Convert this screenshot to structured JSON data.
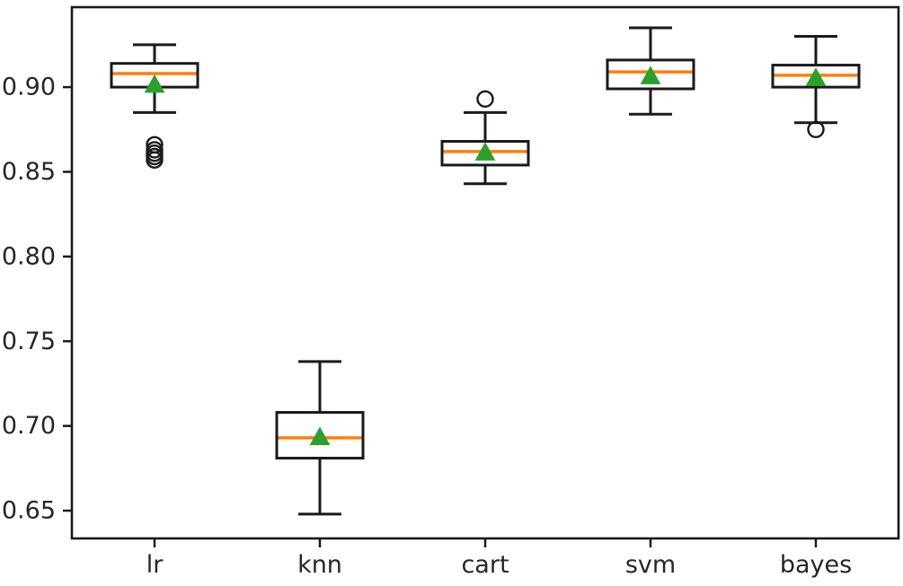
{
  "figure": {
    "title": "",
    "description": "Algorithm comparison boxplot of cross-validation accuracy scores"
  },
  "chart_data": {
    "type": "boxplot",
    "title": "",
    "xlabel": "",
    "ylabel": "",
    "categories": [
      "lr",
      "knn",
      "cart",
      "svm",
      "bayes"
    ],
    "series": [
      {
        "name": "lr",
        "whisker_low": 0.885,
        "q1": 0.9,
        "median": 0.908,
        "q3": 0.914,
        "whisker_high": 0.925,
        "mean": 0.902,
        "outliers": [
          0.857,
          0.859,
          0.861,
          0.863,
          0.866
        ]
      },
      {
        "name": "knn",
        "whisker_low": 0.648,
        "q1": 0.681,
        "median": 0.693,
        "q3": 0.708,
        "whisker_high": 0.738,
        "mean": 0.694,
        "outliers": []
      },
      {
        "name": "cart",
        "whisker_low": 0.843,
        "q1": 0.854,
        "median": 0.862,
        "q3": 0.868,
        "whisker_high": 0.885,
        "mean": 0.862,
        "outliers": [
          0.893
        ]
      },
      {
        "name": "svm",
        "whisker_low": 0.884,
        "q1": 0.899,
        "median": 0.909,
        "q3": 0.916,
        "whisker_high": 0.935,
        "mean": 0.907,
        "outliers": []
      },
      {
        "name": "bayes",
        "whisker_low": 0.879,
        "q1": 0.9,
        "median": 0.907,
        "q3": 0.913,
        "whisker_high": 0.93,
        "mean": 0.906,
        "outliers": [
          0.875
        ]
      }
    ],
    "yticks": [
      "0.65",
      "0.70",
      "0.75",
      "0.80",
      "0.85",
      "0.90"
    ],
    "ytick_values": [
      0.65,
      0.7,
      0.75,
      0.8,
      0.85,
      0.9
    ],
    "ylim": [
      0.6336,
      0.9472
    ],
    "grid": false,
    "legend": "none",
    "marker_shapes": {
      "mean": "triangle-up",
      "outlier": "circle"
    },
    "colors": {
      "box": "#1a1a1a",
      "whisker": "#1a1a1a",
      "median": "#ff7f0e",
      "mean_marker": "#2ca02c",
      "outlier_edge": "#1a1a1a",
      "text": "#262626",
      "background": "#ffffff"
    }
  }
}
